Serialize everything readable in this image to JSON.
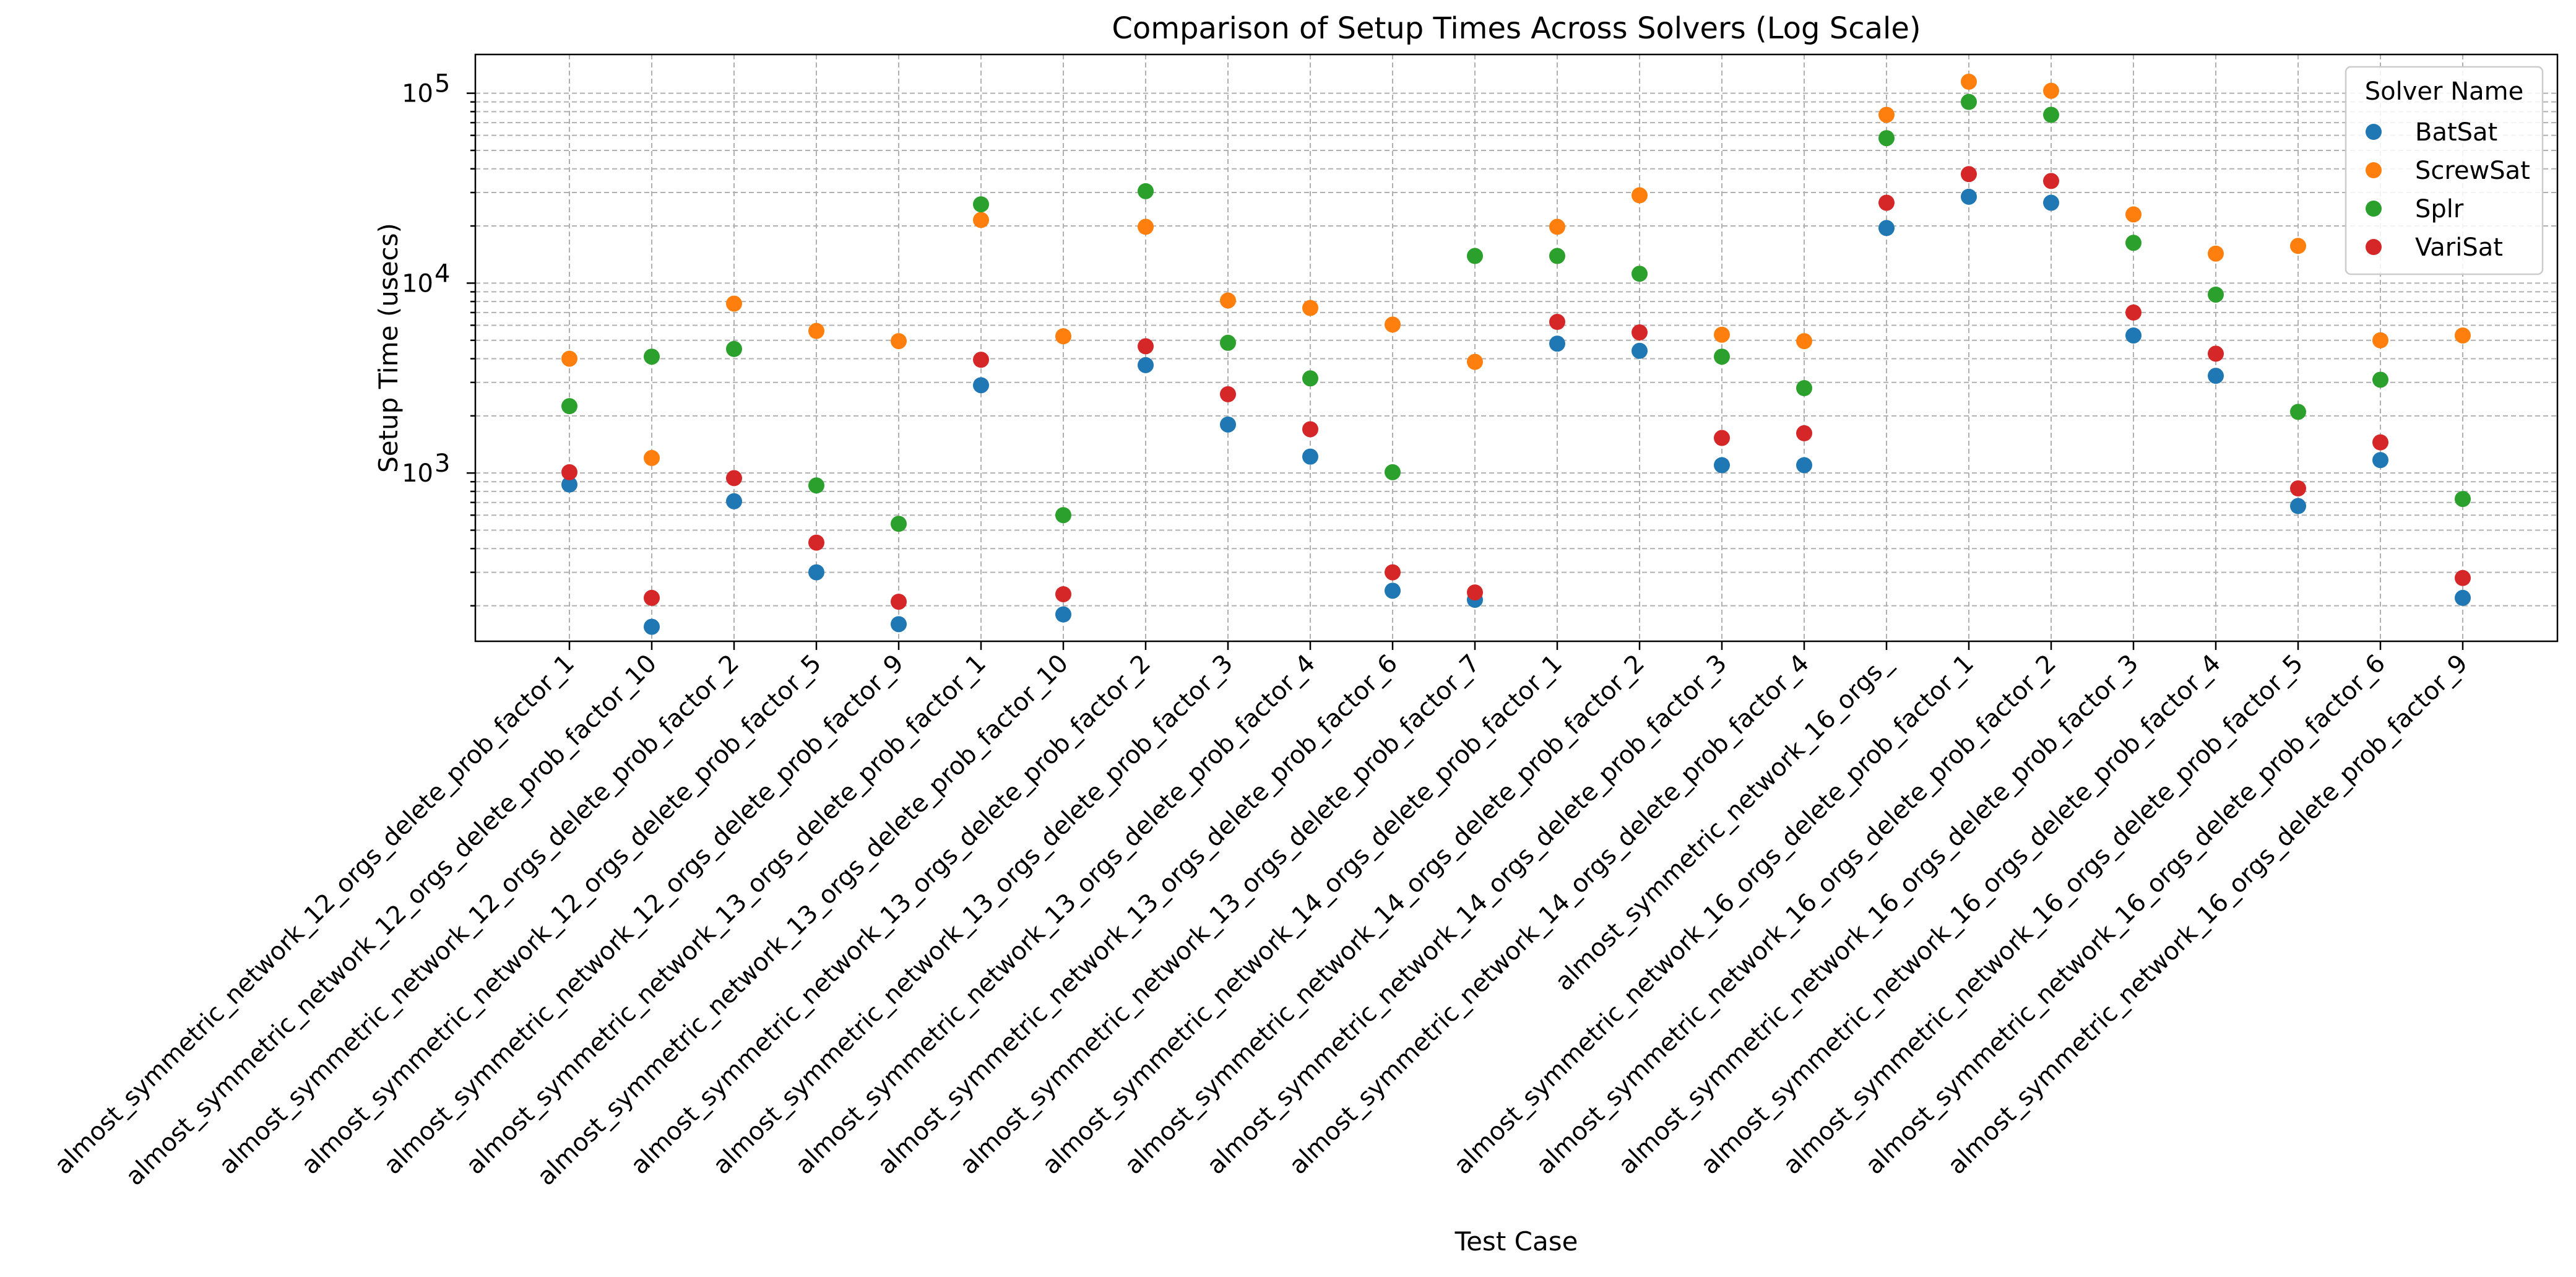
{
  "chart_data": {
    "type": "scatter",
    "title": "Comparison of Setup Times Across Solvers (Log Scale)",
    "xlabel": "Test Case",
    "ylabel": "Setup Time (usecs)",
    "yscale": "log",
    "ylim": [
      130,
      160000
    ],
    "grid": true,
    "legend": {
      "title": "Solver Name",
      "placement": "top-right"
    },
    "categories": [
      "almost_symmetric_network_12_orgs_delete_prob_factor_1",
      "almost_symmetric_network_12_orgs_delete_prob_factor_10",
      "almost_symmetric_network_12_orgs_delete_prob_factor_2",
      "almost_symmetric_network_12_orgs_delete_prob_factor_5",
      "almost_symmetric_network_12_orgs_delete_prob_factor_9",
      "almost_symmetric_network_13_orgs_delete_prob_factor_1",
      "almost_symmetric_network_13_orgs_delete_prob_factor_10",
      "almost_symmetric_network_13_orgs_delete_prob_factor_2",
      "almost_symmetric_network_13_orgs_delete_prob_factor_3",
      "almost_symmetric_network_13_orgs_delete_prob_factor_4",
      "almost_symmetric_network_13_orgs_delete_prob_factor_6",
      "almost_symmetric_network_13_orgs_delete_prob_factor_7",
      "almost_symmetric_network_14_orgs_delete_prob_factor_1",
      "almost_symmetric_network_14_orgs_delete_prob_factor_2",
      "almost_symmetric_network_14_orgs_delete_prob_factor_3",
      "almost_symmetric_network_14_orgs_delete_prob_factor_4",
      "almost_symmetric_network_16_orgs_",
      "almost_symmetric_network_16_orgs_delete_prob_factor_1",
      "almost_symmetric_network_16_orgs_delete_prob_factor_2",
      "almost_symmetric_network_16_orgs_delete_prob_factor_3",
      "almost_symmetric_network_16_orgs_delete_prob_factor_4",
      "almost_symmetric_network_16_orgs_delete_prob_factor_5",
      "almost_symmetric_network_16_orgs_delete_prob_factor_6",
      "almost_symmetric_network_16_orgs_delete_prob_factor_9"
    ],
    "yticks": [
      {
        "value": 1000,
        "base": "10",
        "exp": "3"
      },
      {
        "value": 10000,
        "base": "10",
        "exp": "4"
      },
      {
        "value": 100000,
        "base": "10",
        "exp": "5"
      }
    ],
    "series": [
      {
        "name": "BatSat",
        "color": "#1f77b4",
        "values": [
          870,
          155,
          710,
          300,
          160,
          2900,
          180,
          3700,
          1800,
          1220,
          240,
          215,
          4800,
          4400,
          1100,
          1100,
          19500,
          28500,
          26500,
          5300,
          3250,
          670,
          1170,
          220
        ]
      },
      {
        "name": "ScrewSat",
        "color": "#ff7f0e",
        "values": [
          4000,
          1200,
          7800,
          5600,
          4950,
          21500,
          5250,
          19800,
          8100,
          7400,
          6050,
          3850,
          19800,
          29000,
          5350,
          4950,
          77000,
          115000,
          103000,
          23000,
          14300,
          15700,
          5000,
          5300
        ]
      },
      {
        "name": "Splr",
        "color": "#2ca02c",
        "values": [
          2250,
          4100,
          4500,
          860,
          540,
          26000,
          600,
          30500,
          4850,
          3150,
          1010,
          13900,
          13900,
          11200,
          4100,
          2800,
          58000,
          90000,
          77000,
          16300,
          8700,
          2100,
          3100,
          730
        ]
      },
      {
        "name": "VariSat",
        "color": "#d62728",
        "values": [
          1010,
          220,
          940,
          430,
          210,
          3950,
          230,
          4650,
          2600,
          1700,
          300,
          235,
          6250,
          5500,
          1530,
          1620,
          26500,
          37500,
          34500,
          7000,
          4250,
          830,
          1450,
          280
        ]
      }
    ]
  }
}
